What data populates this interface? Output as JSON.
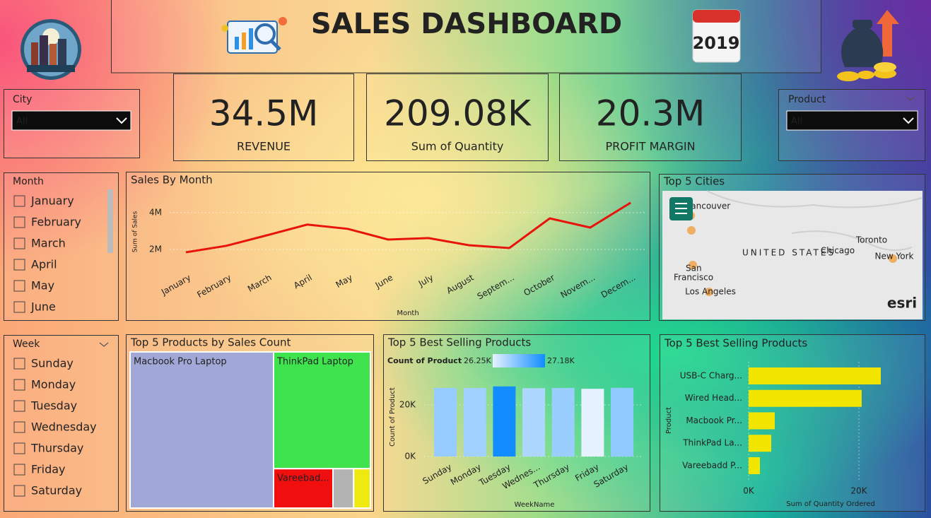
{
  "header": {
    "title": "SALES DASHBOARD",
    "year": "2019"
  },
  "kpis": [
    {
      "value": "34.5M",
      "label": "REVENUE"
    },
    {
      "value": "209.08K",
      "label": "Sum of Quantity"
    },
    {
      "value": "20.3M",
      "label": "PROFIT MARGIN"
    }
  ],
  "filters": {
    "city": {
      "label": "City",
      "selected": "All"
    },
    "product": {
      "label": "Product",
      "selected": "All"
    }
  },
  "month_slicer": {
    "label": "Month",
    "options": [
      "January",
      "February",
      "March",
      "April",
      "May",
      "June"
    ]
  },
  "week_slicer": {
    "label": "Week",
    "options": [
      "Sunday",
      "Monday",
      "Tuesday",
      "Wednesday",
      "Thursday",
      "Friday",
      "Saturday"
    ]
  },
  "map": {
    "title": "Top 5 Cities",
    "labels": [
      "Vancouver",
      "UNITED STATES",
      "Chicago",
      "Toronto",
      "New York",
      "San",
      "Francisco",
      "Los Angeles"
    ],
    "attribution": "esri"
  },
  "chart_data": [
    {
      "type": "line",
      "title": "Sales By Month",
      "x_label": "Month",
      "y_label": "Sum of Sales",
      "categories": [
        "January",
        "February",
        "March",
        "April",
        "May",
        "June",
        "July",
        "August",
        "Septem...",
        "October",
        "Novem...",
        "Decem..."
      ],
      "values": [
        1850000,
        2200000,
        2770000,
        3350000,
        3120000,
        2540000,
        2620000,
        2230000,
        2080000,
        3690000,
        3190000,
        4540000
      ],
      "color": "#e8140c",
      "ylim": [
        1350000,
        4800000
      ],
      "yticks": [
        {
          "value": 2000000,
          "label": "2M"
        },
        {
          "value": 4000000,
          "label": "4M"
        }
      ],
      "grid": true
    },
    {
      "type": "treemap",
      "title": "Top 5 Products by Sales Count",
      "categories": [
        "Macbook Pro Laptop",
        "ThinkPad Laptop",
        "Vareebad...",
        null,
        null
      ],
      "values": [
        44000,
        22200,
        4600,
        1600,
        1300
      ],
      "colors": [
        "#a1a8d8",
        "#3ee34e",
        "#f00e0e",
        "#b3b3b3",
        "#eeea10"
      ]
    },
    {
      "type": "bar",
      "title": "Top 5 Best Selling Products",
      "x_label": "WeekName",
      "y_label": "Count of Product",
      "categories": [
        "Sunday",
        "Monday",
        "Tuesday",
        "Wednes...",
        "Thursday",
        "Friday",
        "Saturday"
      ],
      "values": [
        26600,
        26550,
        27180,
        26500,
        26580,
        26250,
        26620
      ],
      "color_scale": {
        "title": "Count of Product",
        "min": {
          "value": 26250,
          "label": "26.25K"
        },
        "max": {
          "value": 27180,
          "label": "27.18K"
        },
        "colors": [
          "#e6f2ff",
          "#118dff"
        ]
      },
      "ylim": [
        0,
        29000
      ],
      "yticks": [
        {
          "value": 0,
          "label": "0K"
        },
        {
          "value": 20000,
          "label": "20K"
        }
      ],
      "grid": true
    },
    {
      "type": "barh",
      "title": "Top 5 Best Selling Products",
      "x_label": "Sum of Quantity Ordered",
      "y_label": "Product",
      "categories": [
        "USB-C Charg...",
        "Wired Head...",
        "Macbook Pr...",
        "ThinkPad La...",
        "Vareebadd P..."
      ],
      "values": [
        23970,
        20500,
        4740,
        4100,
        2050
      ],
      "color": "#f2e600",
      "xlim": [
        0,
        30000
      ],
      "xticks": [
        {
          "value": 0,
          "label": "0K"
        },
        {
          "value": 20000,
          "label": "20K"
        }
      ],
      "grid": true
    }
  ]
}
